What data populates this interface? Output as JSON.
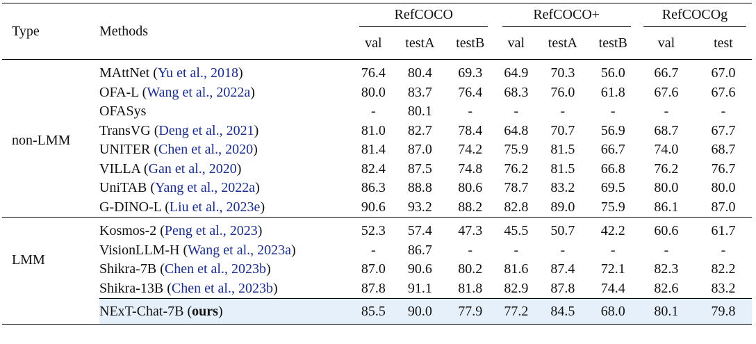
{
  "header": {
    "type_label": "Type",
    "methods_label": "Methods",
    "groups": [
      "RefCOCO",
      "RefCOCO+",
      "RefCOCOg"
    ],
    "subcols": [
      "val",
      "testA",
      "testB",
      "val",
      "testA",
      "testB",
      "val",
      "test"
    ]
  },
  "groups": [
    {
      "type": "non-LMM",
      "rows": [
        {
          "method": "MAttNet",
          "cite": "Yu et al., 2018",
          "values": [
            "76.4",
            "80.4",
            "69.3",
            "64.9",
            "70.3",
            "56.0",
            "66.7",
            "67.0"
          ]
        },
        {
          "method": "OFA-L",
          "cite": "Wang et al., 2022a",
          "values": [
            "80.0",
            "83.7",
            "76.4",
            "68.3",
            "76.0",
            "61.8",
            "67.6",
            "67.6"
          ]
        },
        {
          "method": "OFASys",
          "cite": "",
          "values": [
            "-",
            "80.1",
            "-",
            "-",
            "-",
            "-",
            "-",
            "-"
          ]
        },
        {
          "method": "TransVG",
          "cite": "Deng et al., 2021",
          "values": [
            "81.0",
            "82.7",
            "78.4",
            "64.8",
            "70.7",
            "56.9",
            "68.7",
            "67.7"
          ]
        },
        {
          "method": "UNITER",
          "cite": "Chen et al., 2020",
          "values": [
            "81.4",
            "87.0",
            "74.2",
            "75.9",
            "81.5",
            "66.7",
            "74.0",
            "68.7"
          ]
        },
        {
          "method": "VILLA",
          "cite": "Gan et al., 2020",
          "values": [
            "82.4",
            "87.5",
            "74.8",
            "76.2",
            "81.5",
            "66.8",
            "76.2",
            "76.7"
          ]
        },
        {
          "method": "UniTAB",
          "cite": "Yang et al., 2022a",
          "values": [
            "86.3",
            "88.8",
            "80.6",
            "78.7",
            "83.2",
            "69.5",
            "80.0",
            "80.0"
          ]
        },
        {
          "method": "G-DINO-L",
          "cite": "Liu et al., 2023e",
          "values": [
            "90.6",
            "93.2",
            "88.2",
            "82.8",
            "89.0",
            "75.9",
            "86.1",
            "87.0"
          ]
        }
      ]
    },
    {
      "type": "LMM",
      "rows": [
        {
          "method": "Kosmos-2",
          "cite": "Peng et al., 2023",
          "values": [
            "52.3",
            "57.4",
            "47.3",
            "45.5",
            "50.7",
            "42.2",
            "60.6",
            "61.7"
          ]
        },
        {
          "method": "VisionLLM-H",
          "cite": "Wang et al., 2023a",
          "values": [
            "-",
            "86.7",
            "-",
            "-",
            "-",
            "-",
            "-",
            "-"
          ]
        },
        {
          "method": "Shikra-7B",
          "cite": "Chen et al., 2023b",
          "values": [
            "87.0",
            "90.6",
            "80.2",
            "81.6",
            "87.4",
            "72.1",
            "82.3",
            "82.2"
          ]
        },
        {
          "method": "Shikra-13B",
          "cite": "Chen et al., 2023b",
          "values": [
            "87.8",
            "91.1",
            "81.8",
            "82.9",
            "87.8",
            "74.4",
            "82.6",
            "83.2"
          ]
        }
      ]
    }
  ],
  "ours": {
    "method": "NExT-Chat-7B",
    "tag": "ours",
    "values": [
      "85.5",
      "90.0",
      "77.9",
      "77.2",
      "84.5",
      "68.0",
      "80.1",
      "79.8"
    ]
  },
  "colors": {
    "citation": "#1a2d8f",
    "ours_highlight": "#e6f0fa"
  }
}
